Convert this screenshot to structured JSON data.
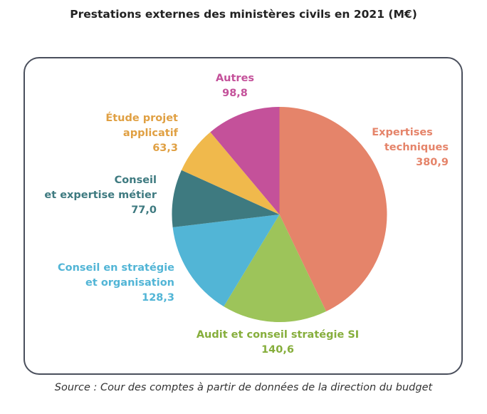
{
  "chart_data": {
    "type": "pie",
    "title": "Prestations externes des ministères civils en 2021 (M€)",
    "source": "Source : Cour des comptes à partir de données de la direction du budget",
    "slices": [
      {
        "label_lines": [
          "Expertises",
          "techniques"
        ],
        "value_text": "380,9",
        "value": 380.9,
        "color": "#E5846A"
      },
      {
        "label_lines": [
          "Audit et conseil stratégie SI"
        ],
        "value_text": "140,6",
        "value": 140.6,
        "color": "#9DC45A"
      },
      {
        "label_lines": [
          "Conseil en stratégie",
          "et organisation"
        ],
        "value_text": "128,3",
        "value": 128.3,
        "color": "#52B5D6"
      },
      {
        "label_lines": [
          "Conseil",
          "et expertise métier"
        ],
        "value_text": "77,0",
        "value": 77.0,
        "color": "#3E7A80"
      },
      {
        "label_lines": [
          "Étude projet",
          "applicatif"
        ],
        "value_text": "63,3",
        "value": 63.3,
        "color": "#F0B94C"
      },
      {
        "label_lines": [
          "Autres"
        ],
        "value_text": "98,8",
        "value": 98.8,
        "color": "#C4519A"
      }
    ]
  }
}
